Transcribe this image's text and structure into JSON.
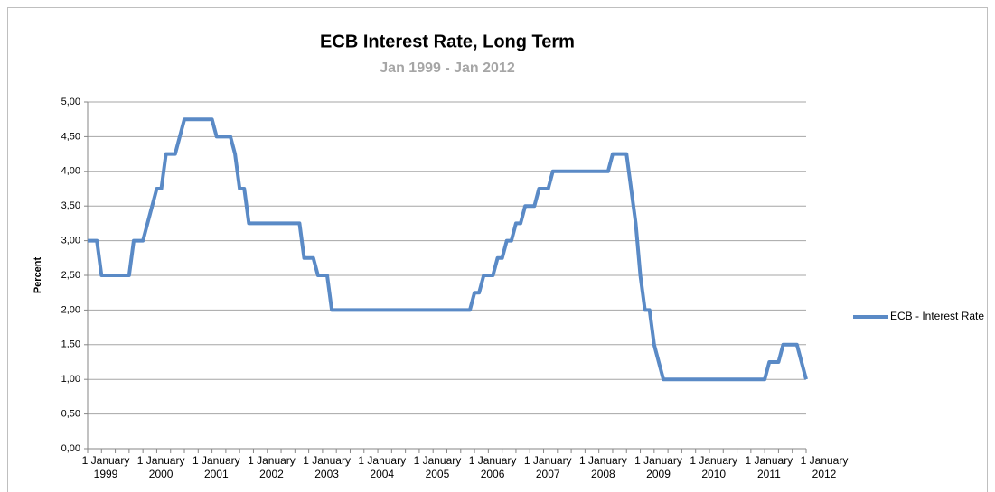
{
  "chart_data": {
    "type": "line",
    "title": "ECB Interest Rate, Long Term",
    "subtitle": "Jan 1999 - Jan 2012",
    "y_label": "Percent",
    "categories": [
      "1 January 1999",
      null,
      null,
      null,
      null,
      null,
      null,
      null,
      null,
      null,
      null,
      null,
      "1 January 2000",
      null,
      null,
      null,
      null,
      null,
      null,
      null,
      null,
      null,
      null,
      null,
      "1 January 2001",
      null,
      null,
      null,
      null,
      null,
      null,
      null,
      null,
      null,
      null,
      null,
      "1 January 2002",
      null,
      null,
      null,
      null,
      null,
      null,
      null,
      null,
      null,
      null,
      null,
      "1 January 2003",
      null,
      null,
      null,
      null,
      null,
      null,
      null,
      null,
      null,
      null,
      null,
      "1 January 2004",
      null,
      null,
      null,
      null,
      null,
      null,
      null,
      null,
      null,
      null,
      null,
      "1 January 2005",
      null,
      null,
      null,
      null,
      null,
      null,
      null,
      null,
      null,
      null,
      null,
      "1 January 2006",
      null,
      null,
      null,
      null,
      null,
      null,
      null,
      null,
      null,
      null,
      null,
      "1 January 2007",
      null,
      null,
      null,
      null,
      null,
      null,
      null,
      null,
      null,
      null,
      null,
      "1 January 2008",
      null,
      null,
      null,
      null,
      null,
      null,
      null,
      null,
      null,
      null,
      null,
      "1 January 2009",
      null,
      null,
      null,
      null,
      null,
      null,
      null,
      null,
      null,
      null,
      null,
      "1 January 2010",
      null,
      null,
      null,
      null,
      null,
      null,
      null,
      null,
      null,
      null,
      null,
      "1 January 2011",
      null,
      null,
      null,
      null,
      null,
      null,
      null,
      null,
      null,
      null,
      null,
      "1 January 2012"
    ],
    "series": [
      {
        "name": "ECB - Interest Rate",
        "color": "#5a8ac6",
        "values": [
          3,
          3,
          3,
          2.5,
          2.5,
          2.5,
          2.5,
          2.5,
          2.5,
          2.5,
          3,
          3,
          3,
          3.25,
          3.5,
          3.75,
          3.75,
          4.25,
          4.25,
          4.25,
          4.5,
          4.75,
          4.75,
          4.75,
          4.75,
          4.75,
          4.75,
          4.75,
          4.5,
          4.5,
          4.5,
          4.5,
          4.25,
          3.75,
          3.75,
          3.25,
          3.25,
          3.25,
          3.25,
          3.25,
          3.25,
          3.25,
          3.25,
          3.25,
          3.25,
          3.25,
          3.25,
          2.75,
          2.75,
          2.75,
          2.5,
          2.5,
          2.5,
          2,
          2,
          2,
          2,
          2,
          2,
          2,
          2,
          2,
          2,
          2,
          2,
          2,
          2,
          2,
          2,
          2,
          2,
          2,
          2,
          2,
          2,
          2,
          2,
          2,
          2,
          2,
          2,
          2,
          2,
          2,
          2.25,
          2.25,
          2.5,
          2.5,
          2.5,
          2.75,
          2.75,
          3,
          3,
          3.25,
          3.25,
          3.5,
          3.5,
          3.5,
          3.75,
          3.75,
          3.75,
          4,
          4,
          4,
          4,
          4,
          4,
          4,
          4,
          4,
          4,
          4,
          4,
          4,
          4.25,
          4.25,
          4.25,
          4.25,
          3.75,
          3.25,
          2.5,
          2,
          2,
          1.5,
          1.25,
          1,
          1,
          1,
          1,
          1,
          1,
          1,
          1,
          1,
          1,
          1,
          1,
          1,
          1,
          1,
          1,
          1,
          1,
          1,
          1,
          1,
          1,
          1,
          1.25,
          1.25,
          1.25,
          1.5,
          1.5,
          1.5,
          1.5,
          1.25,
          1
        ]
      }
    ],
    "ylim": [
      0,
      5
    ],
    "yticks": [
      {
        "value": 0,
        "label": "0,00"
      },
      {
        "value": 0.5,
        "label": "0,50"
      },
      {
        "value": 1,
        "label": "1,00"
      },
      {
        "value": 1.5,
        "label": "1,50"
      },
      {
        "value": 2,
        "label": "2,00"
      },
      {
        "value": 2.5,
        "label": "2,50"
      },
      {
        "value": 3,
        "label": "3,00"
      },
      {
        "value": 3.5,
        "label": "3,50"
      },
      {
        "value": 4,
        "label": "4,00"
      },
      {
        "value": 4.5,
        "label": "4,50"
      },
      {
        "value": 5,
        "label": "5,00"
      }
    ],
    "grid": true,
    "legend": "right"
  }
}
